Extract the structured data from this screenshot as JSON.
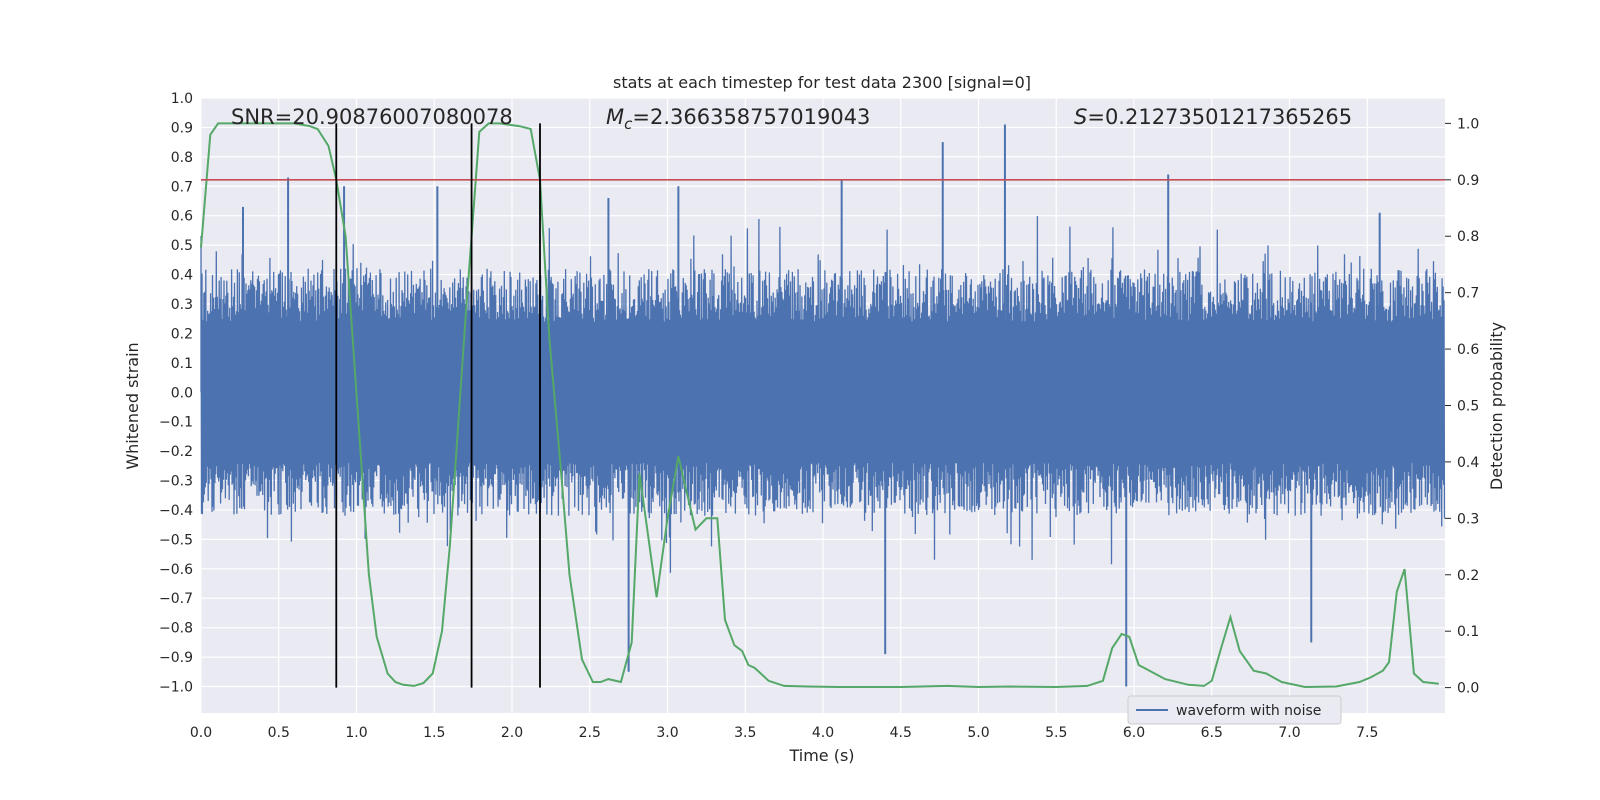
{
  "chart_data": {
    "type": "line",
    "title": "stats at each timestep for test data 2300 [signal=0]",
    "xlabel": "Time (s)",
    "ylabel": "Whitened strain",
    "y2label": "Detection probability",
    "xlim": [
      0,
      8
    ],
    "ylim": [
      -1.09,
      1.0
    ],
    "y2lim": [
      -0.045,
      1.045
    ],
    "xticks": [
      0.0,
      0.5,
      1.0,
      1.5,
      2.0,
      2.5,
      3.0,
      3.5,
      4.0,
      4.5,
      5.0,
      5.5,
      6.0,
      6.5,
      7.0,
      7.5
    ],
    "yticks": [
      1.0,
      0.9,
      0.8,
      0.7,
      0.6,
      0.5,
      0.4,
      0.3,
      0.2,
      0.1,
      0.0,
      -0.1,
      -0.2,
      -0.3,
      -0.4,
      -0.5,
      -0.6,
      -0.7,
      -0.8,
      -0.9,
      -1.0
    ],
    "y2ticks": [
      1.0,
      0.9,
      0.8,
      0.7,
      0.6,
      0.5,
      0.4,
      0.3,
      0.2,
      0.1,
      0.0
    ],
    "grid": true,
    "annotations": {
      "snr": "SNR=20.90876007080078",
      "mc_symbol": "M",
      "mc_sub": "c",
      "mc_value": "=2.366358757019043",
      "s_symbol": "S",
      "s_value": "=0.21273501217365265"
    },
    "threshold": 0.9,
    "vertical_lines_x": [
      0.87,
      1.74,
      2.18
    ],
    "series": [
      {
        "name": "waveform with noise",
        "axis": "left",
        "color": "#4c72b0",
        "envelope_note": "dense noise, typical amplitude about ±0.4",
        "spikes": [
          {
            "x": 0.56,
            "y": 0.73
          },
          {
            "x": 0.27,
            "y": 0.63
          },
          {
            "x": 0.92,
            "y": 0.7
          },
          {
            "x": 1.52,
            "y": 0.7
          },
          {
            "x": 2.62,
            "y": 0.66
          },
          {
            "x": 2.75,
            "y": -0.95
          },
          {
            "x": 3.07,
            "y": 0.7
          },
          {
            "x": 4.12,
            "y": 0.72
          },
          {
            "x": 4.4,
            "y": -0.89
          },
          {
            "x": 4.77,
            "y": 0.85
          },
          {
            "x": 5.17,
            "y": 0.91
          },
          {
            "x": 5.95,
            "y": -1.0
          },
          {
            "x": 6.22,
            "y": 0.74
          },
          {
            "x": 7.14,
            "y": -0.85
          },
          {
            "x": 7.58,
            "y": 0.61
          }
        ]
      },
      {
        "name": "",
        "axis": "right",
        "color": "#55a868",
        "x": [
          0.0,
          0.06,
          0.11,
          0.2,
          0.4,
          0.6,
          0.7,
          0.75,
          0.82,
          0.87,
          0.93,
          0.98,
          1.03,
          1.08,
          1.13,
          1.2,
          1.25,
          1.3,
          1.37,
          1.43,
          1.49,
          1.55,
          1.6,
          1.65,
          1.7,
          1.74,
          1.79,
          1.85,
          1.92,
          2.05,
          2.12,
          2.18,
          2.24,
          2.31,
          2.37,
          2.45,
          2.52,
          2.57,
          2.62,
          2.7,
          2.77,
          2.82,
          2.86,
          2.93,
          3.0,
          3.07,
          3.12,
          3.18,
          3.25,
          3.32,
          3.37,
          3.43,
          3.48,
          3.52,
          3.56,
          3.6,
          3.65,
          3.75,
          3.9,
          4.1,
          4.5,
          4.8,
          5.0,
          5.2,
          5.5,
          5.7,
          5.8,
          5.86,
          5.92,
          5.97,
          6.03,
          6.2,
          6.35,
          6.45,
          6.5,
          6.56,
          6.62,
          6.68,
          6.77,
          6.85,
          6.95,
          7.1,
          7.3,
          7.45,
          7.52,
          7.6,
          7.64,
          7.69,
          7.74,
          7.8,
          7.86,
          7.96
        ],
        "values": [
          0.78,
          0.98,
          1.0,
          1.0,
          1.0,
          1.0,
          0.995,
          0.99,
          0.96,
          0.9,
          0.8,
          0.6,
          0.4,
          0.2,
          0.09,
          0.025,
          0.01,
          0.005,
          0.003,
          0.008,
          0.025,
          0.1,
          0.25,
          0.45,
          0.65,
          0.8,
          0.985,
          1.0,
          1.0,
          0.995,
          0.99,
          0.9,
          0.62,
          0.4,
          0.2,
          0.05,
          0.01,
          0.01,
          0.015,
          0.01,
          0.08,
          0.38,
          0.3,
          0.16,
          0.3,
          0.41,
          0.35,
          0.28,
          0.3,
          0.3,
          0.12,
          0.075,
          0.065,
          0.04,
          0.035,
          0.025,
          0.012,
          0.003,
          0.002,
          0.001,
          0.001,
          0.003,
          0.001,
          0.002,
          0.001,
          0.003,
          0.012,
          0.07,
          0.095,
          0.09,
          0.04,
          0.015,
          0.005,
          0.003,
          0.012,
          0.07,
          0.125,
          0.065,
          0.03,
          0.025,
          0.01,
          0.001,
          0.002,
          0.01,
          0.018,
          0.03,
          0.045,
          0.17,
          0.21,
          0.025,
          0.01,
          0.007
        ]
      },
      {
        "name": "",
        "axis": "right",
        "color": "#c44e52",
        "type": "hline",
        "y": 0.9
      }
    ],
    "legend": {
      "placement": "lower-center-right",
      "entries": [
        "waveform with noise"
      ]
    }
  }
}
